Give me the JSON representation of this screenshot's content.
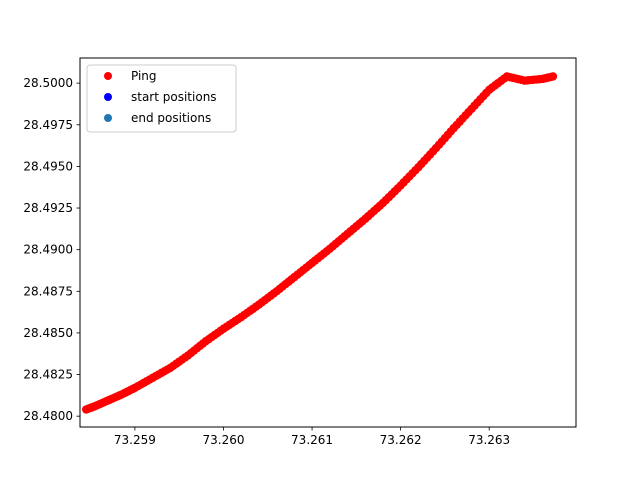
{
  "chart_data": {
    "type": "scatter",
    "title": "",
    "xlabel": "",
    "ylabel": "",
    "xlim": [
      73.25838,
      73.26398
    ],
    "ylim": [
      28.47935,
      28.50151
    ],
    "xticks": [
      73.259,
      73.26,
      73.261,
      73.262,
      73.263
    ],
    "xtick_labels": [
      "73.259",
      "73.260",
      "73.261",
      "73.262",
      "73.263"
    ],
    "yticks": [
      28.48,
      28.4825,
      28.485,
      28.4875,
      28.49,
      28.4925,
      28.495,
      28.4975,
      28.5
    ],
    "ytick_labels": [
      "28.4800",
      "28.4825",
      "28.4850",
      "28.4875",
      "28.4900",
      "28.4925",
      "28.4950",
      "28.4975",
      "28.5000"
    ],
    "grid": false,
    "legend_position": "upper-left",
    "series": [
      {
        "name": "Ping",
        "color": "#ff0000",
        "x": [
          73.25845,
          73.25855,
          73.2587,
          73.25885,
          73.259,
          73.2592,
          73.2594,
          73.2596,
          73.2598,
          73.26,
          73.2602,
          73.2604,
          73.2606,
          73.2608,
          73.261,
          73.2612,
          73.2614,
          73.2616,
          73.2618,
          73.262,
          73.2622,
          73.2624,
          73.2626,
          73.2628,
          73.263,
          73.2632,
          73.2634,
          73.2636,
          73.26372
        ],
        "y": [
          28.4804,
          28.4806,
          28.48095,
          28.4813,
          28.4817,
          28.4823,
          28.4829,
          28.48365,
          28.4845,
          28.48525,
          28.48595,
          28.4867,
          28.4875,
          28.48835,
          28.4892,
          28.49005,
          28.49095,
          28.49185,
          28.4928,
          28.49385,
          28.49495,
          28.4961,
          28.4973,
          28.49845,
          28.4996,
          28.5004,
          28.50015,
          28.50025,
          28.5004
        ]
      },
      {
        "name": "start positions",
        "color": "#0000ff",
        "x": [],
        "y": []
      },
      {
        "name": "end positions",
        "color": "#1f77b4",
        "x": [],
        "y": []
      }
    ]
  }
}
